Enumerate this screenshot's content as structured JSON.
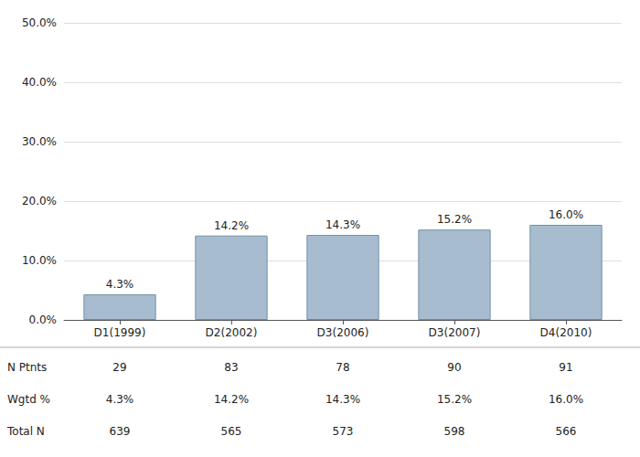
{
  "chart_data": {
    "type": "bar",
    "categories": [
      "D1(1999)",
      "D2(2002)",
      "D3(2006)",
      "D3(2007)",
      "D4(2010)"
    ],
    "values": [
      4.3,
      14.2,
      14.3,
      15.2,
      16.0
    ],
    "value_labels": [
      "4.3%",
      "14.2%",
      "14.3%",
      "15.2%",
      "16.0%"
    ],
    "data_labels": true,
    "color": "#a8bcd0",
    "ylim": [
      0,
      50
    ],
    "yticks": [
      {
        "value": 0,
        "label": "0.0%"
      },
      {
        "value": 10,
        "label": "10.0%"
      },
      {
        "value": 20,
        "label": "20.0%"
      },
      {
        "value": 30,
        "label": "30.0%"
      },
      {
        "value": 40,
        "label": "40.0%"
      },
      {
        "value": 50,
        "label": "50.0%"
      }
    ],
    "grid": true,
    "table": [
      {
        "label": "N Ptnts",
        "values": [
          29,
          83,
          78,
          90,
          91
        ]
      },
      {
        "label": "Wgtd %",
        "values": [
          4.3,
          14.2,
          14.3,
          15.2,
          16.0
        ],
        "value_labels": [
          "4.3%",
          "14.2%",
          "14.3%",
          "15.2%",
          "16.0%"
        ]
      },
      {
        "label": "Total N",
        "values": [
          639,
          565,
          573,
          598,
          566
        ]
      }
    ]
  }
}
